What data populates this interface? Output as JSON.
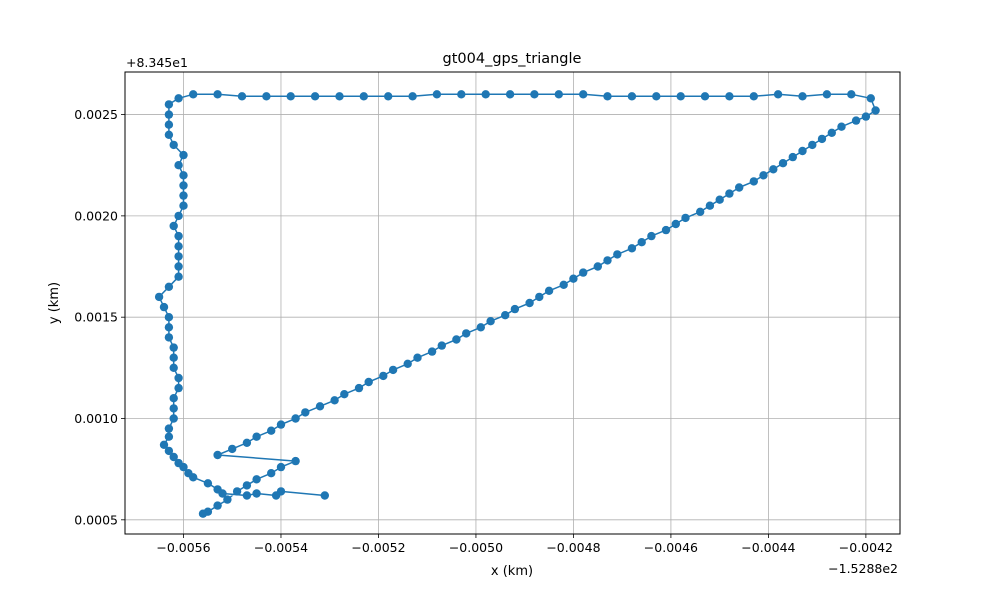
{
  "chart_data": {
    "type": "line",
    "title": "gt004_gps_triangle",
    "xlabel": "x (km)",
    "ylabel": "y (km)",
    "x_offset_label": "−1.5288e2",
    "y_offset_label": "+8.345e1",
    "xlim": [
      -0.00572,
      -0.00413
    ],
    "ylim": [
      0.00043,
      0.00271
    ],
    "x_ticks": [
      -0.0056,
      -0.0054,
      -0.0052,
      -0.005,
      -0.0048,
      -0.0046,
      -0.0044,
      -0.0042
    ],
    "x_tick_labels": [
      "−0.0056",
      "−0.0054",
      "−0.0052",
      "−0.0050",
      "−0.0048",
      "−0.0046",
      "−0.0044",
      "−0.0042"
    ],
    "y_ticks": [
      0.0005,
      0.001,
      0.0015,
      0.002,
      0.0025
    ],
    "y_tick_labels": [
      "0.0005",
      "0.0010",
      "0.0015",
      "0.0020",
      "0.0025"
    ],
    "grid": true,
    "colors": {
      "series": "#1f77b4",
      "grid": "#b0b0b0"
    },
    "series": [
      {
        "marker": "o",
        "points": [
          [
            -0.00531,
            0.00062
          ],
          [
            -0.0054,
            0.00064
          ],
          [
            -0.00541,
            0.00062
          ],
          [
            -0.00545,
            0.00063
          ],
          [
            -0.00547,
            0.00062
          ],
          [
            -0.00552,
            0.00063
          ],
          [
            -0.00553,
            0.00065
          ],
          [
            -0.00555,
            0.00068
          ],
          [
            -0.00558,
            0.00071
          ],
          [
            -0.00559,
            0.00073
          ],
          [
            -0.0056,
            0.00076
          ],
          [
            -0.00561,
            0.00078
          ],
          [
            -0.00562,
            0.00081
          ],
          [
            -0.00563,
            0.00084
          ],
          [
            -0.00564,
            0.00087
          ],
          [
            -0.00563,
            0.00091
          ],
          [
            -0.00563,
            0.00095
          ],
          [
            -0.00562,
            0.001
          ],
          [
            -0.00562,
            0.00105
          ],
          [
            -0.00562,
            0.0011
          ],
          [
            -0.00561,
            0.00115
          ],
          [
            -0.00561,
            0.0012
          ],
          [
            -0.00562,
            0.00125
          ],
          [
            -0.00562,
            0.0013
          ],
          [
            -0.00562,
            0.00135
          ],
          [
            -0.00563,
            0.0014
          ],
          [
            -0.00563,
            0.00145
          ],
          [
            -0.00563,
            0.0015
          ],
          [
            -0.00564,
            0.00155
          ],
          [
            -0.00565,
            0.0016
          ],
          [
            -0.00563,
            0.00165
          ],
          [
            -0.00561,
            0.0017
          ],
          [
            -0.00561,
            0.00175
          ],
          [
            -0.00561,
            0.0018
          ],
          [
            -0.00561,
            0.00185
          ],
          [
            -0.00561,
            0.0019
          ],
          [
            -0.00562,
            0.00195
          ],
          [
            -0.00561,
            0.002
          ],
          [
            -0.0056,
            0.00205
          ],
          [
            -0.0056,
            0.0021
          ],
          [
            -0.0056,
            0.00215
          ],
          [
            -0.0056,
            0.0022
          ],
          [
            -0.00561,
            0.00225
          ],
          [
            -0.0056,
            0.0023
          ],
          [
            -0.00562,
            0.00235
          ],
          [
            -0.00563,
            0.0024
          ],
          [
            -0.00563,
            0.00245
          ],
          [
            -0.00563,
            0.0025
          ],
          [
            -0.00563,
            0.00255
          ],
          [
            -0.00561,
            0.00258
          ],
          [
            -0.00558,
            0.0026
          ],
          [
            -0.00553,
            0.0026
          ],
          [
            -0.00548,
            0.00259
          ],
          [
            -0.00543,
            0.00259
          ],
          [
            -0.00538,
            0.00259
          ],
          [
            -0.00533,
            0.00259
          ],
          [
            -0.00528,
            0.00259
          ],
          [
            -0.00523,
            0.00259
          ],
          [
            -0.00518,
            0.00259
          ],
          [
            -0.00513,
            0.00259
          ],
          [
            -0.00508,
            0.0026
          ],
          [
            -0.00503,
            0.0026
          ],
          [
            -0.00498,
            0.0026
          ],
          [
            -0.00493,
            0.0026
          ],
          [
            -0.00488,
            0.0026
          ],
          [
            -0.00483,
            0.0026
          ],
          [
            -0.00478,
            0.0026
          ],
          [
            -0.00473,
            0.00259
          ],
          [
            -0.00468,
            0.00259
          ],
          [
            -0.00463,
            0.00259
          ],
          [
            -0.00458,
            0.00259
          ],
          [
            -0.00453,
            0.00259
          ],
          [
            -0.00448,
            0.00259
          ],
          [
            -0.00443,
            0.00259
          ],
          [
            -0.00438,
            0.0026
          ],
          [
            -0.00433,
            0.00259
          ],
          [
            -0.00428,
            0.0026
          ],
          [
            -0.00423,
            0.0026
          ],
          [
            -0.00419,
            0.00258
          ],
          [
            -0.00418,
            0.00252
          ],
          [
            -0.0042,
            0.00249
          ],
          [
            -0.00422,
            0.00247
          ],
          [
            -0.00425,
            0.00244
          ],
          [
            -0.00427,
            0.00241
          ],
          [
            -0.00429,
            0.00238
          ],
          [
            -0.00431,
            0.00235
          ],
          [
            -0.00433,
            0.00232
          ],
          [
            -0.00435,
            0.00229
          ],
          [
            -0.00437,
            0.00226
          ],
          [
            -0.00439,
            0.00223
          ],
          [
            -0.00441,
            0.0022
          ],
          [
            -0.00443,
            0.00217
          ],
          [
            -0.00446,
            0.00214
          ],
          [
            -0.00448,
            0.00211
          ],
          [
            -0.0045,
            0.00208
          ],
          [
            -0.00452,
            0.00205
          ],
          [
            -0.00454,
            0.00202
          ],
          [
            -0.00457,
            0.00199
          ],
          [
            -0.00459,
            0.00196
          ],
          [
            -0.00461,
            0.00193
          ],
          [
            -0.00464,
            0.0019
          ],
          [
            -0.00466,
            0.00187
          ],
          [
            -0.00468,
            0.00184
          ],
          [
            -0.00471,
            0.00181
          ],
          [
            -0.00473,
            0.00178
          ],
          [
            -0.00475,
            0.00175
          ],
          [
            -0.00478,
            0.00172
          ],
          [
            -0.0048,
            0.00169
          ],
          [
            -0.00482,
            0.00166
          ],
          [
            -0.00485,
            0.00163
          ],
          [
            -0.00487,
            0.0016
          ],
          [
            -0.00489,
            0.00157
          ],
          [
            -0.00492,
            0.00154
          ],
          [
            -0.00494,
            0.00151
          ],
          [
            -0.00497,
            0.00148
          ],
          [
            -0.00499,
            0.00145
          ],
          [
            -0.00502,
            0.00142
          ],
          [
            -0.00504,
            0.00139
          ],
          [
            -0.00507,
            0.00136
          ],
          [
            -0.00509,
            0.00133
          ],
          [
            -0.00512,
            0.0013
          ],
          [
            -0.00514,
            0.00127
          ],
          [
            -0.00517,
            0.00124
          ],
          [
            -0.00519,
            0.00121
          ],
          [
            -0.00522,
            0.00118
          ],
          [
            -0.00524,
            0.00115
          ],
          [
            -0.00527,
            0.00112
          ],
          [
            -0.00529,
            0.00109
          ],
          [
            -0.00532,
            0.00106
          ],
          [
            -0.00535,
            0.00103
          ],
          [
            -0.00537,
            0.001
          ],
          [
            -0.0054,
            0.00097
          ],
          [
            -0.00542,
            0.00094
          ],
          [
            -0.00545,
            0.00091
          ],
          [
            -0.00547,
            0.00088
          ],
          [
            -0.0055,
            0.00085
          ],
          [
            -0.00553,
            0.00082
          ],
          [
            -0.00537,
            0.00079
          ],
          [
            -0.0054,
            0.00076
          ],
          [
            -0.00542,
            0.00073
          ],
          [
            -0.00545,
            0.0007
          ],
          [
            -0.00547,
            0.00067
          ],
          [
            -0.00549,
            0.00064
          ],
          [
            -0.00551,
            0.0006
          ],
          [
            -0.00553,
            0.00057
          ],
          [
            -0.00555,
            0.00054
          ],
          [
            -0.00556,
            0.00053
          ]
        ]
      }
    ]
  }
}
